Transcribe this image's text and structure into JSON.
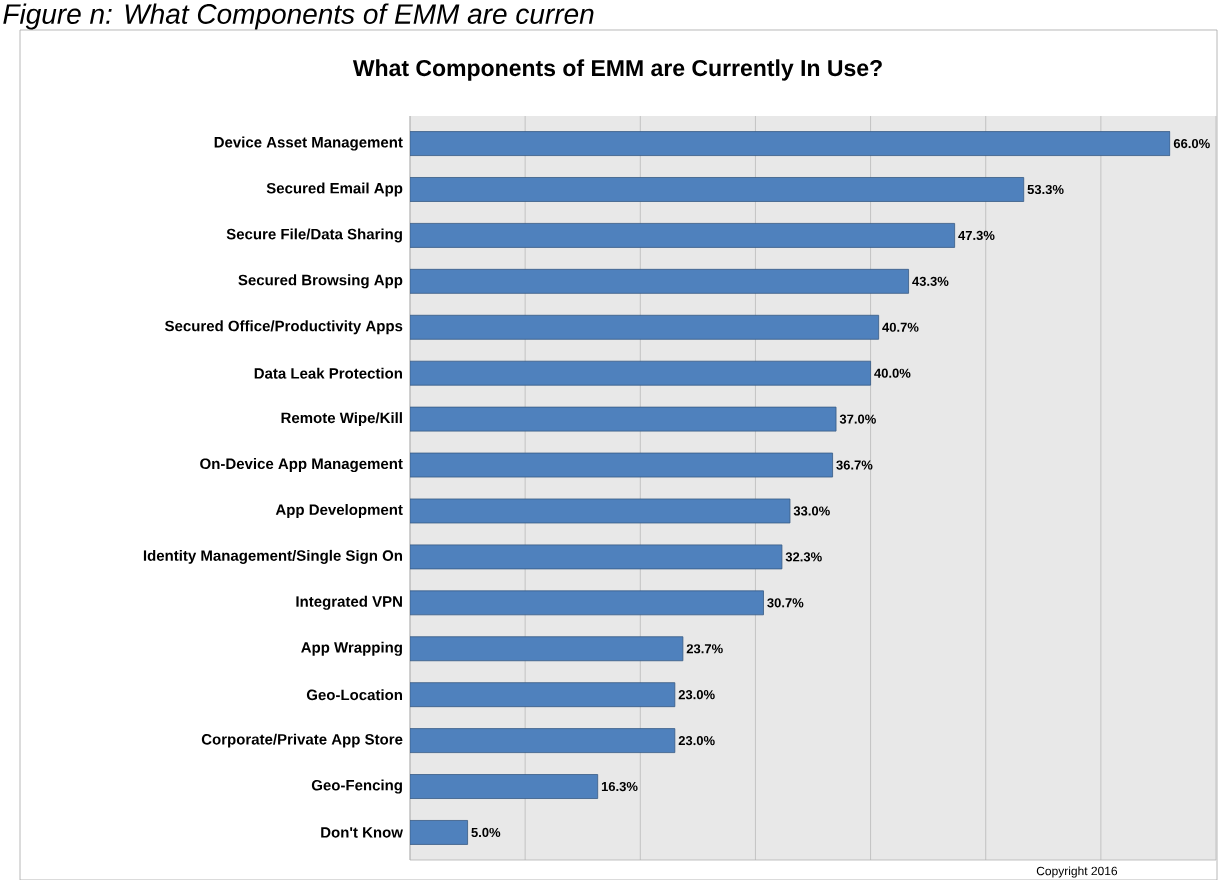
{
  "chart_data": {
    "type": "bar",
    "orientation": "horizontal",
    "title": "What Components of EMM are Currently In Use?",
    "categories": [
      "Device Asset Management",
      "Secured Email App",
      "Secure File/Data Sharing",
      "Secured Browsing App",
      "Secured Office/Productivity Apps",
      "Data Leak Protection",
      "Remote Wipe/Kill",
      "On-Device App Management",
      "App Development",
      "Identity Management/Single Sign On",
      "Integrated VPN",
      "App Wrapping",
      "Geo-Location",
      "Corporate/Private App Store",
      "Geo-Fencing",
      "Don't Know"
    ],
    "values": [
      66.0,
      53.3,
      47.3,
      43.3,
      40.7,
      40.0,
      37.0,
      36.7,
      33.0,
      32.3,
      30.7,
      23.7,
      23.0,
      23.0,
      16.3,
      5.0
    ],
    "value_labels": [
      "66.0%",
      "53.3%",
      "47.3%",
      "43.3%",
      "40.7%",
      "40.0%",
      "37.0%",
      "36.7%",
      "33.0%",
      "32.3%",
      "30.7%",
      "23.7%",
      "23.0%",
      "23.0%",
      "16.3%",
      "5.0%"
    ],
    "color": "#4f81bd",
    "xlim": [
      0,
      70
    ],
    "xticks": [
      {
        "value": 0,
        "label": null
      },
      {
        "value": 10,
        "label": null
      },
      {
        "value": 20,
        "label": null
      },
      {
        "value": 30,
        "label": null
      },
      {
        "value": 40,
        "label": null
      },
      {
        "value": 50,
        "label": null
      },
      {
        "value": 60,
        "label": null
      },
      {
        "value": 70,
        "label": null
      }
    ],
    "grid": "x",
    "tick_labels": "y",
    "annotations": [
      "Figure n: What Components of EMM are curren",
      "Copyright 2016"
    ]
  }
}
